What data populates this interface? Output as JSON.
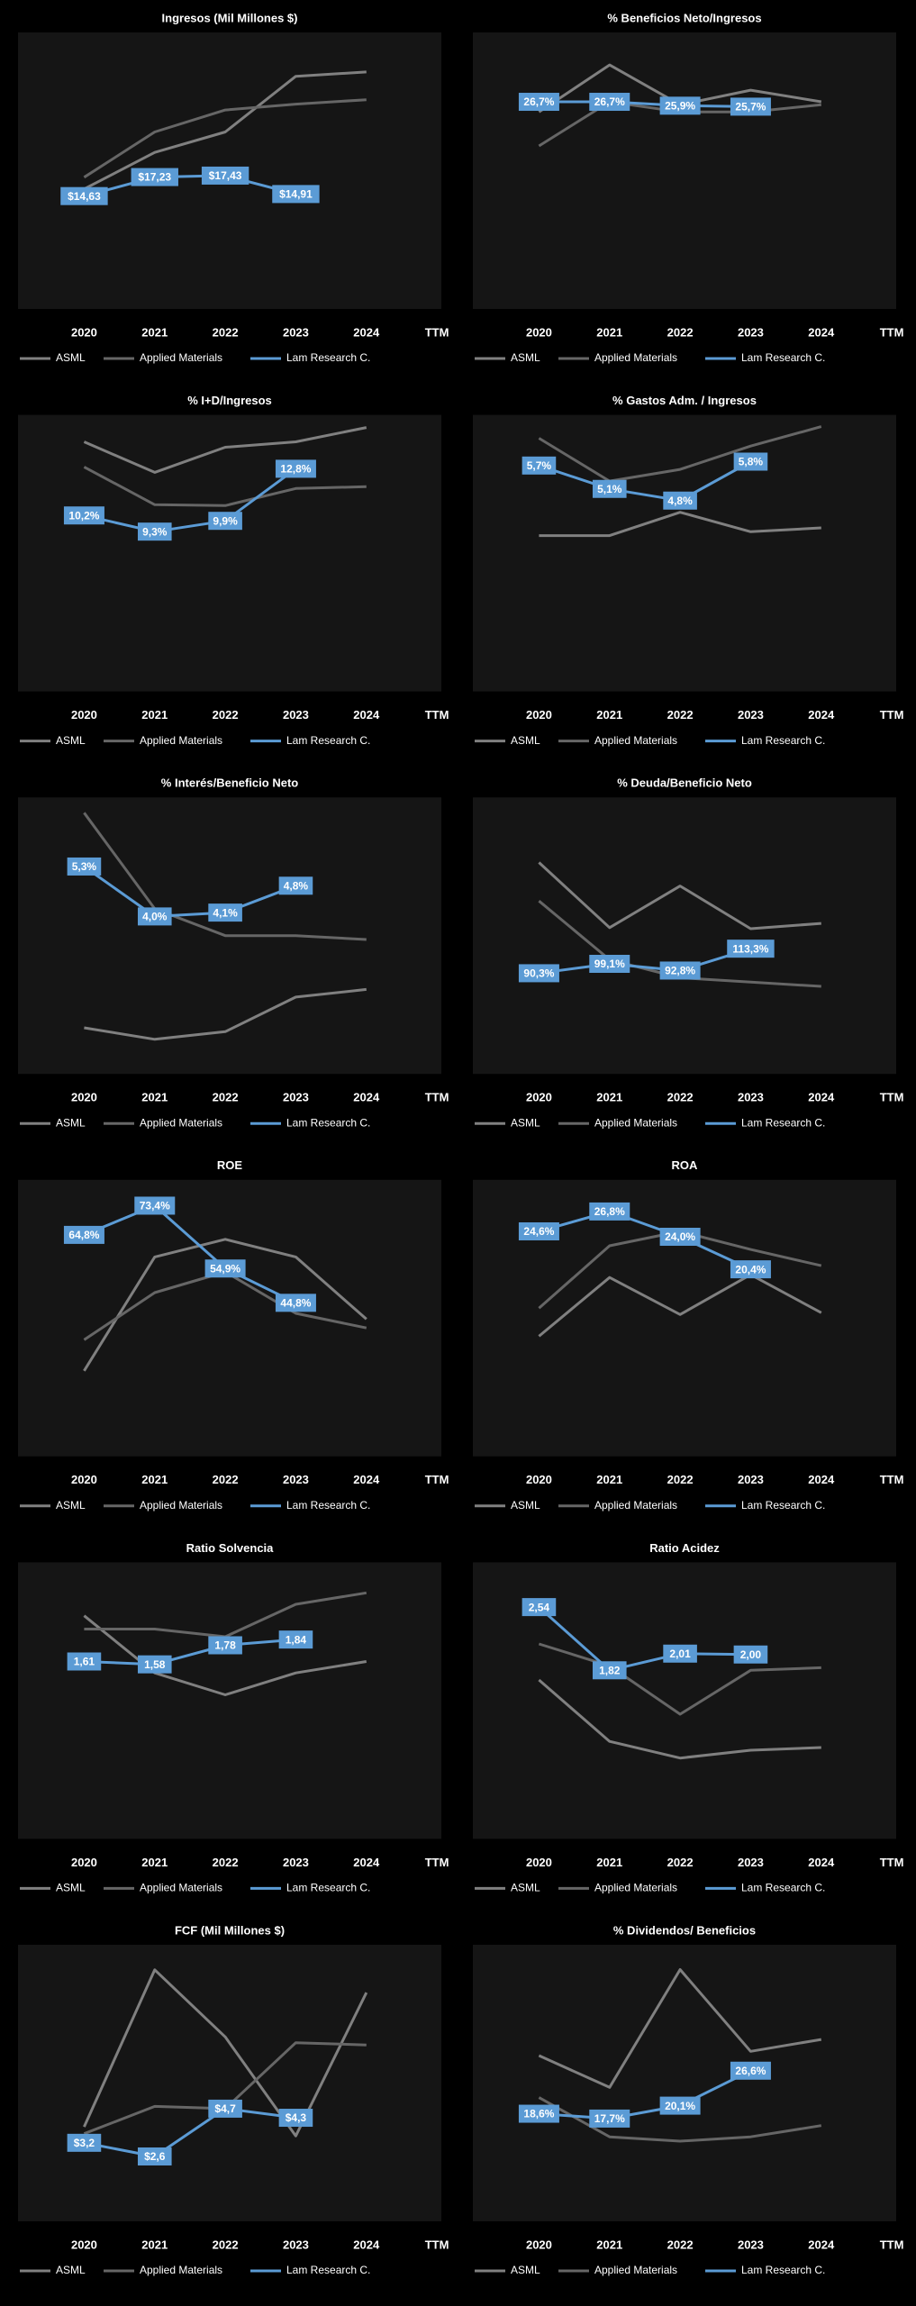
{
  "chart_data": [
    {
      "type": "line",
      "title": "Ingresos (Mil Millones $)",
      "categories": [
        "2020",
        "2021",
        "2022",
        "2023",
        "2024",
        "TTM"
      ],
      "ylim": [
        -0.8,
        37
      ],
      "series": [
        {
          "name": "ASML",
          "color": "#808080",
          "values": [
            15.6,
            20.6,
            23.4,
            31.0,
            31.6,
            null
          ]
        },
        {
          "name": "Applied Materials",
          "color": "#666666",
          "values": [
            17.2,
            23.4,
            26.4,
            27.2,
            27.8,
            null
          ]
        },
        {
          "name": "Lam Research C.",
          "color": "#5b9bd5",
          "values": [
            14.63,
            17.23,
            17.43,
            14.91,
            null,
            null
          ],
          "value_labels": [
            "$14,63",
            "$17,23",
            "$17,43",
            "$14,91",
            null,
            null
          ]
        }
      ]
    },
    {
      "type": "line",
      "title": "% Beneficios Neto/Ingresos",
      "categories": [
        "2020",
        "2021",
        "2022",
        "2023",
        "2024",
        "TTM"
      ],
      "ylim": [
        -16,
        41
      ],
      "series": [
        {
          "name": "ASML",
          "color": "#808080",
          "values": [
            24.6,
            34.3,
            26.1,
            29.1,
            26.7,
            null
          ]
        },
        {
          "name": "Applied Materials",
          "color": "#666666",
          "values": [
            17.6,
            26.7,
            24.6,
            24.6,
            26.1,
            null
          ]
        },
        {
          "name": "Lam Research C.",
          "color": "#5b9bd5",
          "values": [
            26.7,
            26.7,
            25.9,
            25.7,
            null,
            null
          ],
          "value_labels": [
            "26,7%",
            "26,7%",
            "25,9%",
            "25,7%",
            null,
            null
          ]
        }
      ]
    },
    {
      "type": "line",
      "title": "% I+D/Ingresos",
      "categories": [
        "2020",
        "2021",
        "2022",
        "2023",
        "2024",
        "TTM"
      ],
      "ylim": [
        0.4,
        15.8
      ],
      "series": [
        {
          "name": "ASML",
          "color": "#808080",
          "values": [
            14.3,
            12.6,
            14.0,
            14.3,
            15.1,
            null
          ]
        },
        {
          "name": "Applied Materials",
          "color": "#666666",
          "values": [
            12.9,
            10.8,
            10.75,
            11.7,
            11.8,
            null
          ]
        },
        {
          "name": "Lam Research C.",
          "color": "#5b9bd5",
          "values": [
            10.2,
            9.3,
            9.9,
            12.8,
            null,
            null
          ],
          "value_labels": [
            "10,2%",
            "9,3%",
            "9,9%",
            "12,8%",
            null,
            null
          ]
        }
      ]
    },
    {
      "type": "line",
      "title": "% Gastos Adm. / Ingresos",
      "categories": [
        "2020",
        "2021",
        "2022",
        "2023",
        "2024",
        "TTM"
      ],
      "ylim": [
        -0.1,
        7.0
      ],
      "series": [
        {
          "name": "ASML",
          "color": "#808080",
          "values": [
            3.9,
            3.9,
            4.5,
            4.0,
            4.1,
            null
          ]
        },
        {
          "name": "Applied Materials",
          "color": "#666666",
          "values": [
            6.4,
            5.3,
            5.6,
            6.2,
            6.7,
            null
          ]
        },
        {
          "name": "Lam Research C.",
          "color": "#5b9bd5",
          "values": [
            5.7,
            5.1,
            4.8,
            5.8,
            null,
            null
          ],
          "value_labels": [
            "5,7%",
            "5,1%",
            "4,8%",
            "5,8%",
            null,
            null
          ]
        }
      ]
    },
    {
      "type": "line",
      "title": "% Interés/Beneficio Neto",
      "categories": [
        "2020",
        "2021",
        "2022",
        "2023",
        "2024",
        "TTM"
      ],
      "ylim": [
        -0.1,
        7.1
      ],
      "series": [
        {
          "name": "ASML",
          "color": "#808080",
          "values": [
            1.1,
            0.8,
            1.0,
            1.9,
            2.1,
            null
          ]
        },
        {
          "name": "Applied Materials",
          "color": "#666666",
          "values": [
            6.7,
            4.2,
            3.5,
            3.5,
            3.4,
            null
          ]
        },
        {
          "name": "Lam Research C.",
          "color": "#5b9bd5",
          "values": [
            5.3,
            4.0,
            4.1,
            4.8,
            null,
            null
          ],
          "value_labels": [
            "5,3%",
            "4,0%",
            "4,1%",
            "4,8%",
            null,
            null
          ]
        }
      ]
    },
    {
      "type": "line",
      "title": "% Deuda/Beneficio Neto",
      "categories": [
        "2020",
        "2021",
        "2022",
        "2023",
        "2024",
        "TTM"
      ],
      "ylim": [
        -4,
        255
      ],
      "series": [
        {
          "name": "ASML",
          "color": "#808080",
          "values": [
            194,
            133,
            172,
            132,
            137,
            null
          ]
        },
        {
          "name": "Applied Materials",
          "color": "#666666",
          "values": [
            158,
            103,
            86,
            82,
            78,
            null
          ]
        },
        {
          "name": "Lam Research C.",
          "color": "#5b9bd5",
          "values": [
            90.3,
            99.1,
            92.8,
            113.3,
            null,
            null
          ],
          "value_labels": [
            "90,3%",
            "99,1%",
            "92,8%",
            "113,3%",
            null,
            null
          ]
        }
      ]
    },
    {
      "type": "line",
      "title": "ROE",
      "categories": [
        "2020",
        "2021",
        "2022",
        "2023",
        "2024",
        "TTM"
      ],
      "ylim": [
        -0.4,
        81
      ],
      "series": [
        {
          "name": "ASML",
          "color": "#808080",
          "values": [
            24.8,
            58.3,
            63.5,
            58.3,
            40.0,
            null
          ]
        },
        {
          "name": "Applied Materials",
          "color": "#666666",
          "values": [
            33.9,
            47.8,
            53.9,
            41.7,
            37.4,
            null
          ]
        },
        {
          "name": "Lam Research C.",
          "color": "#5b9bd5",
          "values": [
            64.8,
            73.4,
            54.9,
            44.8,
            null,
            null
          ],
          "value_labels": [
            "64,8%",
            "73,4%",
            "54,9%",
            "44,8%",
            null,
            null
          ]
        }
      ]
    },
    {
      "type": "line",
      "title": "ROA",
      "categories": [
        "2020",
        "2021",
        "2022",
        "2023",
        "2024",
        "TTM"
      ],
      "ylim": [
        -0.3,
        30.3
      ],
      "series": [
        {
          "name": "ASML",
          "color": "#808080",
          "values": [
            13.0,
            19.5,
            15.4,
            19.8,
            15.6,
            null
          ]
        },
        {
          "name": "Applied Materials",
          "color": "#666666",
          "values": [
            16.1,
            23.0,
            24.6,
            22.6,
            20.8,
            null
          ]
        },
        {
          "name": "Lam Research C.",
          "color": "#5b9bd5",
          "values": [
            24.6,
            26.8,
            24.0,
            20.4,
            null,
            null
          ],
          "value_labels": [
            "24,6%",
            "26,8%",
            "24,0%",
            "20,4%",
            null,
            null
          ]
        }
      ]
    },
    {
      "type": "line",
      "title": "Ratio Solvencia",
      "categories": [
        "2020",
        "2021",
        "2022",
        "2023",
        "2024",
        "TTM"
      ],
      "ylim": [
        -0.25,
        2.65
      ],
      "series": [
        {
          "name": "ASML",
          "color": "#808080",
          "values": [
            2.09,
            1.49,
            1.26,
            1.49,
            1.61,
            null
          ]
        },
        {
          "name": "Applied Materials",
          "color": "#666666",
          "values": [
            1.95,
            1.95,
            1.87,
            2.21,
            2.33,
            null
          ]
        },
        {
          "name": "Lam Research C.",
          "color": "#5b9bd5",
          "values": [
            1.61,
            1.58,
            1.78,
            1.84,
            null,
            null
          ],
          "value_labels": [
            "1,61",
            "1,58",
            "1,78",
            "1,84",
            null,
            null
          ]
        }
      ]
    },
    {
      "type": "line",
      "title": "Ratio Acidez",
      "categories": [
        "2020",
        "2021",
        "2022",
        "2023",
        "2024",
        "TTM"
      ],
      "ylim": [
        -0.1,
        3.05
      ],
      "series": [
        {
          "name": "ASML",
          "color": "#808080",
          "values": [
            1.71,
            1.01,
            0.82,
            0.91,
            0.94,
            null
          ]
        },
        {
          "name": "Applied Materials",
          "color": "#666666",
          "values": [
            2.12,
            1.87,
            1.32,
            1.82,
            1.85,
            null
          ]
        },
        {
          "name": "Lam Research C.",
          "color": "#5b9bd5",
          "values": [
            2.54,
            1.82,
            2.01,
            2.0,
            null,
            null
          ],
          "value_labels": [
            "2,54",
            "1,82",
            "2,01",
            "2,00",
            null,
            null
          ]
        }
      ]
    },
    {
      "type": "line",
      "title": "FCF (Mil Millones $)",
      "categories": [
        "2020",
        "2021",
        "2022",
        "2023",
        "2024",
        "TTM"
      ],
      "ylim": [
        -0.25,
        11.9
      ],
      "series": [
        {
          "name": "ASML",
          "color": "#808080",
          "values": [
            3.9,
            10.8,
            7.85,
            3.5,
            9.8,
            null
          ]
        },
        {
          "name": "Applied Materials",
          "color": "#666666",
          "values": [
            3.6,
            4.8,
            4.7,
            7.6,
            7.5,
            null
          ]
        },
        {
          "name": "Lam Research C.",
          "color": "#5b9bd5",
          "values": [
            3.2,
            2.6,
            4.7,
            4.3,
            null,
            null
          ],
          "value_labels": [
            "$3,2",
            "$2,6",
            "$4,7",
            "$4,3",
            null,
            null
          ]
        }
      ]
    },
    {
      "type": "line",
      "title": "% Dividendos/ Beneficios",
      "categories": [
        "2020",
        "2021",
        "2022",
        "2023",
        "2024",
        "TTM"
      ],
      "ylim": [
        -1.4,
        50
      ],
      "series": [
        {
          "name": "ASML",
          "color": "#808080",
          "values": [
            29.4,
            23.5,
            45.4,
            30.2,
            32.4,
            null
          ]
        },
        {
          "name": "Applied Materials",
          "color": "#666666",
          "values": [
            21.6,
            14.3,
            13.5,
            14.3,
            16.4,
            null
          ]
        },
        {
          "name": "Lam Research C.",
          "color": "#5b9bd5",
          "values": [
            18.6,
            17.7,
            20.1,
            26.6,
            null,
            null
          ],
          "value_labels": [
            "18,6%",
            "17,7%",
            "20,1%",
            "26,6%",
            null,
            null
          ]
        }
      ]
    }
  ]
}
